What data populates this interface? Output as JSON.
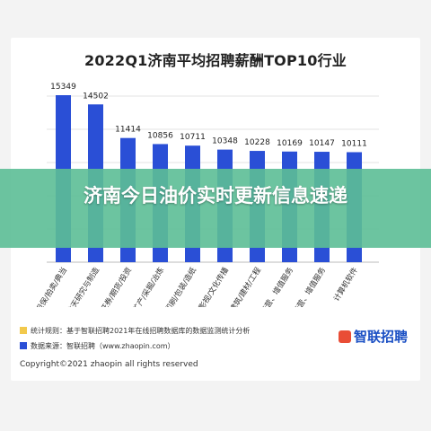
{
  "chart_data": {
    "type": "bar",
    "title": "2022Q1济南平均招聘薪酬TOP10行业",
    "categories": [
      "信托/担保/拍卖/典当",
      "航空/航天研究与制造",
      "基金/证券/期货/投资",
      "能源/矿产/采掘/冶炼",
      "印刷/包装/造纸",
      "媒体/出版/影视/文化传播",
      "房地产/建筑/建材/工程",
      "通信/电信运营、增值服务",
      "通信/电信运营、增值服务",
      "计算机软件"
    ],
    "values": [
      15349,
      14502,
      11414,
      10856,
      10711,
      10348,
      10228,
      10169,
      10147,
      10111
    ],
    "value_labels": [
      "15349",
      "14502",
      "11414",
      "10856",
      "10711",
      "10348",
      "10228",
      "10169",
      "10147",
      "10111"
    ],
    "bar_color": "#2a4fd6",
    "grid": true
  },
  "overlay": {
    "text": "济南今日油价实时更新信息速递"
  },
  "footer": {
    "stat_rule": "统计规则：基于智联招聘2021年在线招聘数据库的数据监测统计分析",
    "source": "数据来源：智联招聘（www.zhaopin.com）",
    "brand": "智联招聘",
    "copyright": "Copyright©2021 zhaopin all rights reserved",
    "stat_color": "#f2c94c",
    "source_color": "#2a4fd6"
  }
}
